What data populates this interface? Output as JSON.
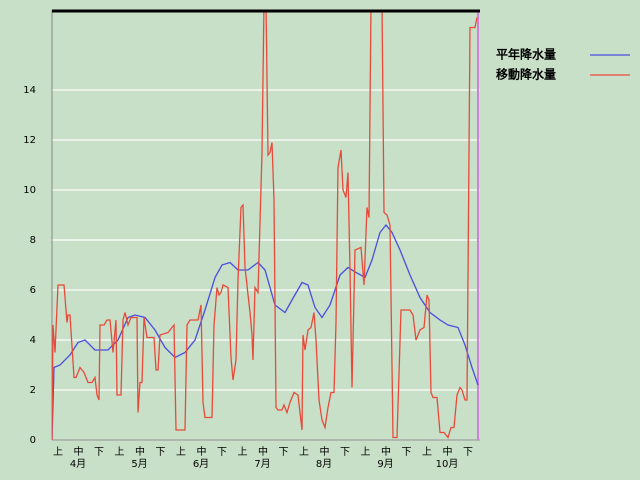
{
  "chart_data": {
    "type": "line",
    "series": [
      {
        "name": "平年降水量",
        "color": "#4a4ee0",
        "x": [
          0,
          1,
          4,
          9,
          13,
          16.5,
          21.5,
          28,
          33,
          38,
          41.5,
          46.5,
          51.5,
          56.5,
          61.5,
          66.5,
          71.5,
          76.5,
          81.5,
          85,
          89,
          93,
          98,
          103,
          106.5,
          111.5,
          116.5,
          120,
          125,
          128,
          131.5,
          135,
          139,
          144,
          148,
          152,
          156.5,
          160,
          164,
          167,
          170,
          174,
          179,
          184,
          189,
          194,
          198,
          203,
          206.5,
          210,
          213
        ],
        "values": [
          0,
          2.9,
          3.0,
          3.4,
          3.9,
          4.0,
          3.6,
          3.6,
          4.0,
          4.9,
          5.0,
          4.9,
          4.4,
          3.7,
          3.3,
          3.5,
          4.0,
          5.2,
          6.5,
          7.0,
          7.1,
          6.8,
          6.8,
          7.1,
          6.8,
          5.4,
          5.1,
          5.6,
          6.3,
          6.2,
          5.3,
          4.9,
          5.4,
          6.6,
          6.9,
          6.7,
          6.5,
          7.2,
          8.3,
          8.6,
          8.3,
          7.6,
          6.6,
          5.7,
          5.1,
          4.8,
          4.6,
          4.5,
          3.8,
          2.9,
          2.2
        ]
      },
      {
        "name": "移動降水量",
        "color": "#e84a3a",
        "x": [
          0,
          0.5,
          1.5,
          3,
          6,
          7.5,
          8,
          9,
          11,
          12,
          14,
          16,
          18,
          20,
          21.5,
          22.5,
          23.5,
          24,
          26,
          27.5,
          29,
          30.5,
          32,
          32.5,
          34.5,
          35.5,
          36.5,
          38,
          39.5,
          42.5,
          43,
          44,
          45,
          46,
          47.5,
          51,
          52,
          53,
          54,
          58,
          61,
          62,
          66.5,
          67.5,
          69,
          73,
          74.5,
          75.5,
          76.5,
          80,
          81,
          82.5,
          83.5,
          84.5,
          85.5,
          88,
          89.5,
          90.5,
          92,
          93,
          94.5,
          95.5,
          96.5,
          99,
          100,
          100.5,
          101.5,
          103,
          105,
          106,
          107,
          108,
          109,
          110,
          111,
          112,
          113,
          115,
          116,
          117.5,
          119,
          121,
          123,
          125,
          125.5,
          126.5,
          128,
          129.5,
          131,
          132,
          133.5,
          135,
          136.5,
          138,
          139.5,
          141,
          142,
          143,
          144.5,
          145.5,
          147,
          148,
          149,
          150,
          151.5,
          154.5,
          156,
          157.5,
          158.5,
          159.5,
          165,
          166,
          167.5,
          169,
          170.5,
          172.5,
          174.5,
          179,
          180.5,
          182,
          184,
          186,
          187.5,
          188.5,
          189.5,
          190.5,
          192.5,
          194,
          196,
          198,
          199.5,
          201,
          202.5,
          204,
          205,
          206.5,
          207.5,
          209,
          211.5,
          212.5
        ],
        "values": [
          0,
          4.6,
          3.5,
          6.2,
          6.2,
          4.7,
          5.0,
          5.0,
          2.5,
          2.5,
          2.9,
          2.7,
          2.3,
          2.3,
          2.5,
          1.8,
          1.6,
          4.6,
          4.6,
          4.8,
          4.8,
          3.5,
          4.8,
          1.8,
          1.8,
          4.8,
          5.1,
          4.6,
          4.9,
          4.9,
          1.1,
          2.3,
          2.3,
          4.9,
          4.1,
          4.1,
          2.8,
          2.8,
          4.2,
          4.3,
          4.6,
          0.4,
          0.4,
          4.6,
          4.8,
          4.8,
          5.4,
          1.5,
          0.9,
          0.9,
          4.6,
          6.1,
          5.8,
          5.9,
          6.2,
          6.1,
          3.3,
          2.4,
          3.2,
          6.4,
          9.3,
          9.4,
          6.9,
          5.1,
          4.2,
          3.2,
          6.1,
          5.9,
          11.5,
          17.5,
          17.5,
          11.4,
          11.5,
          11.9,
          9.6,
          1.3,
          1.2,
          1.2,
          1.4,
          1.1,
          1.5,
          1.9,
          1.8,
          0.4,
          4.2,
          3.6,
          4.4,
          4.5,
          5.1,
          4.0,
          1.6,
          0.8,
          0.5,
          1.3,
          1.9,
          1.9,
          4.7,
          10.9,
          11.6,
          10.0,
          9.7,
          10.7,
          6.8,
          2.1,
          7.6,
          7.7,
          6.2,
          9.3,
          8.9,
          17.5,
          17.5,
          9.1,
          9.0,
          8.6,
          0.1,
          0.1,
          5.2,
          5.2,
          5.0,
          4.0,
          4.4,
          4.5,
          5.8,
          5.6,
          1.9,
          1.7,
          1.7,
          0.3,
          0.3,
          0.1,
          0.5,
          0.5,
          1.8,
          2.1,
          2.0,
          1.6,
          1.6,
          16.5,
          16.5,
          16.9
        ]
      }
    ],
    "xlim": [
      0,
      214
    ],
    "ylim": [
      0,
      17.2
    ],
    "yticks": [
      0,
      2,
      4,
      6,
      8,
      10,
      12,
      14
    ],
    "grid": true,
    "dekads": [
      "上",
      "中",
      "下",
      "上",
      "中",
      "下",
      "上",
      "中",
      "下",
      "上",
      "中",
      "下",
      "上",
      "中",
      "下",
      "上",
      "中",
      "下",
      "上",
      "中",
      "下"
    ],
    "months": [
      "4月",
      "5月",
      "6月",
      "7月",
      "8月",
      "9月",
      "10月"
    ],
    "legend": "right"
  }
}
